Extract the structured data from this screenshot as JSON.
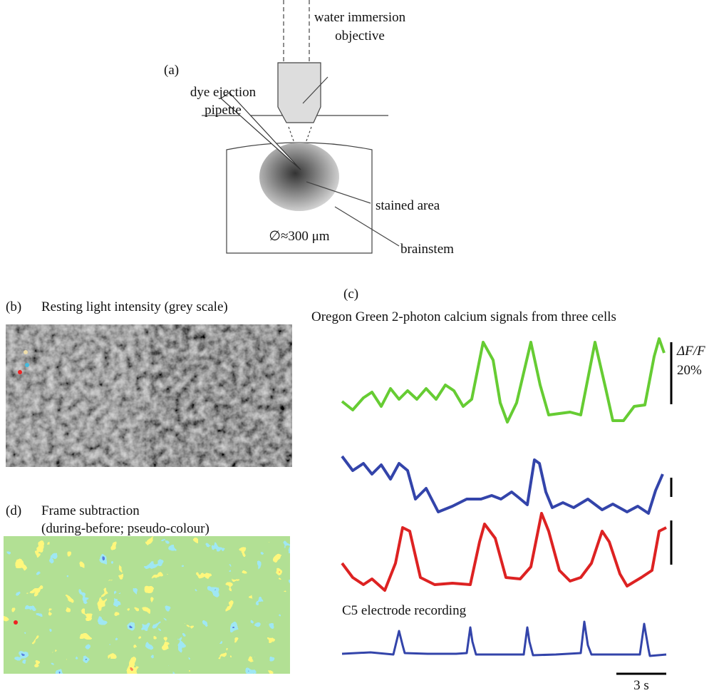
{
  "panel_a": {
    "label": "(a)",
    "pipette_label": [
      "dye ejection",
      "pipette"
    ],
    "objective_label": [
      "water immersion",
      "objective"
    ],
    "stained_label": "stained area",
    "diameter_label": "∅≈300 μm",
    "brainstem_label": "brainstem"
  },
  "panel_b": {
    "label": "(b)",
    "title": "Resting light intensity (grey scale)"
  },
  "panel_c": {
    "label": "(c)",
    "title": "Oregon Green 2-photon calcium signals from three cells",
    "scale_label": [
      "ΔF/F",
      "20%"
    ],
    "electrode_label": "C5 electrode recording",
    "time_scale_label": "3 s"
  },
  "panel_d": {
    "label": "(d)",
    "title": [
      "Frame subtraction",
      "(during-before; pseudo-colour)"
    ]
  }
}
